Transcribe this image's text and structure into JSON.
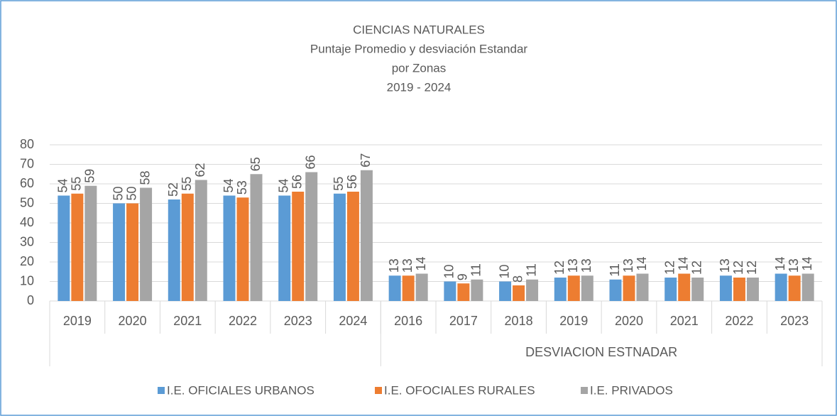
{
  "chart_data": {
    "type": "bar",
    "title": [
      "CIENCIAS NATURALES",
      "Puntaje Promedio y desviación Estandar",
      "por Zonas",
      "2019 - 2024"
    ],
    "groups": [
      {
        "label": null,
        "categories": [
          "2019",
          "2020",
          "2021",
          "2022",
          "2023",
          "2024"
        ]
      },
      {
        "label": "DESVIACION ESTNADAR",
        "categories": [
          "2016",
          "2017",
          "2018",
          "2019",
          "2020",
          "2021",
          "2022",
          "2023"
        ]
      }
    ],
    "series": [
      {
        "name": "I.E. OFICIALES URBANOS",
        "color": "#5b9bd5",
        "values": [
          54,
          50,
          52,
          54,
          54,
          55,
          13,
          10,
          10,
          12,
          11,
          12,
          13,
          14
        ]
      },
      {
        "name": "I.E. OFOCIALES RURALES",
        "color": "#ed7d31",
        "values": [
          55,
          50,
          55,
          53,
          56,
          56,
          13,
          9,
          8,
          13,
          13,
          14,
          12,
          13
        ]
      },
      {
        "name": "I.E. PRIVADOS",
        "color": "#a5a5a5",
        "values": [
          59,
          58,
          62,
          65,
          66,
          67,
          14,
          11,
          11,
          13,
          14,
          12,
          12,
          14
        ]
      }
    ],
    "ylim": [
      0,
      80
    ],
    "yticks": [
      0,
      10,
      20,
      30,
      40,
      50,
      60,
      70,
      80
    ],
    "grid": true,
    "legend": "bottom"
  }
}
